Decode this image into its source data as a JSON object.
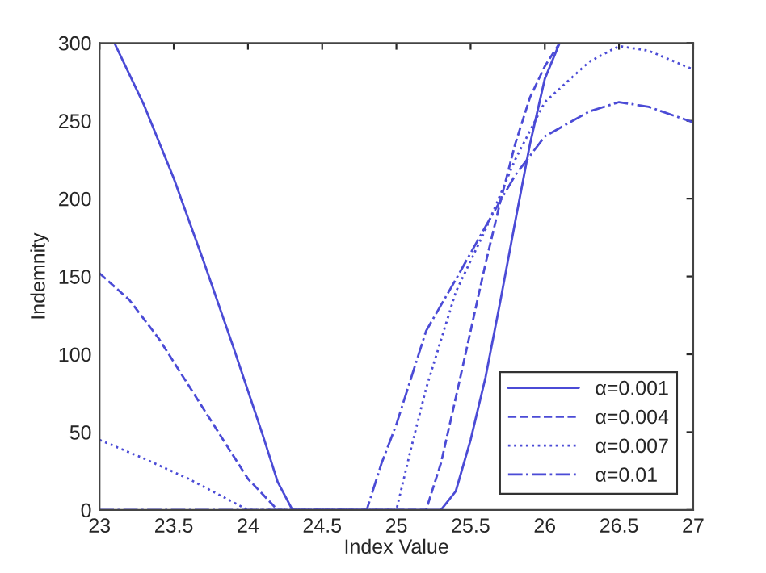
{
  "chart_data": {
    "type": "line",
    "xlabel": "Index Value",
    "ylabel": "Indemnity",
    "xlim": [
      23,
      27
    ],
    "ylim": [
      0,
      300
    ],
    "xticks": [
      23,
      23.5,
      24,
      24.5,
      25,
      25.5,
      26,
      26.5,
      27
    ],
    "yticks": [
      0,
      50,
      100,
      150,
      200,
      250,
      300
    ],
    "grid": false,
    "legend": "bottom right",
    "marker": "none",
    "series": [
      {
        "name": "α=0.001",
        "color": "#4b4bd6",
        "line_style": "solid",
        "x": [
          23,
          23.1,
          23.3,
          23.5,
          23.7,
          23.9,
          24.1,
          24.2,
          24.3,
          25.3,
          25.4,
          25.5,
          25.6,
          25.7,
          25.8,
          25.9,
          26,
          26.1
        ],
        "values": [
          300,
          300,
          260,
          213,
          160,
          105,
          48,
          18,
          0,
          0,
          12,
          45,
          85,
          134,
          185,
          235,
          277,
          300
        ]
      },
      {
        "name": "α=0.004",
        "color": "#4b4bd6",
        "line_style": "dashed",
        "x": [
          23,
          23.2,
          23.4,
          23.6,
          23.8,
          24,
          24.2,
          25.2,
          25.3,
          25.4,
          25.5,
          25.6,
          25.7,
          25.8,
          25.9,
          26,
          26.1
        ],
        "values": [
          152,
          135,
          110,
          80,
          50,
          20,
          0,
          0,
          30,
          72,
          115,
          158,
          198,
          235,
          265,
          285,
          300
        ]
      },
      {
        "name": "α=0.007",
        "color": "#4b4bd6",
        "line_style": "dotted",
        "x": [
          23,
          23.3,
          23.6,
          23.9,
          24,
          25,
          25.1,
          25.2,
          25.4,
          25.6,
          25.8,
          26,
          26.3,
          26.5,
          26.7,
          27
        ],
        "values": [
          45,
          33,
          20,
          5,
          0,
          0,
          40,
          78,
          140,
          180,
          225,
          262,
          288,
          298,
          295,
          283
        ]
      },
      {
        "name": "α=0.01",
        "color": "#4b4bd6",
        "line_style": "dashdot",
        "x": [
          23,
          24.8,
          24.9,
          25,
          25.2,
          25.4,
          25.6,
          25.8,
          26,
          26.3,
          26.5,
          26.7,
          27
        ],
        "values": [
          0,
          0,
          30,
          55,
          115,
          148,
          182,
          215,
          240,
          256,
          262,
          259,
          249
        ]
      }
    ]
  }
}
